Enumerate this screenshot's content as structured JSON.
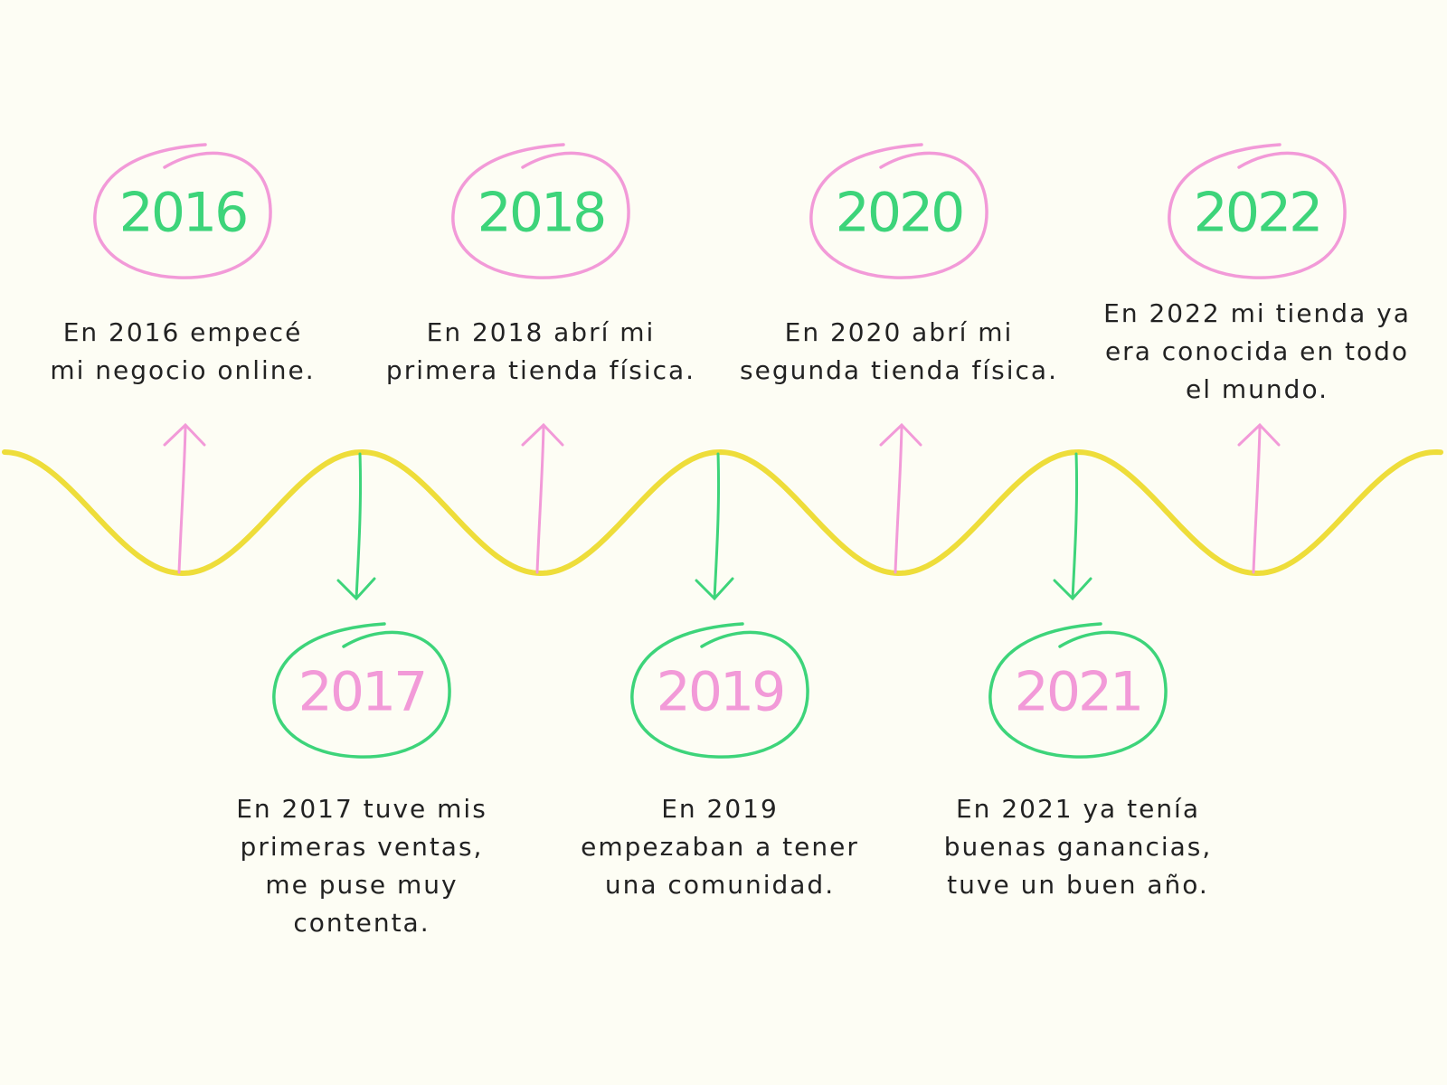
{
  "events": [
    {
      "year": "2016",
      "lines": [
        "En 2016 empecé",
        "mi negocio online."
      ]
    },
    {
      "year": "2017",
      "lines": [
        "En 2017 tuve mis",
        "primeras ventas,",
        "me puse muy",
        "contenta."
      ]
    },
    {
      "year": "2018",
      "lines": [
        "En 2018 abrí mi",
        "primera tienda física."
      ]
    },
    {
      "year": "2019",
      "lines": [
        "En 2019",
        "empezaban a tener",
        "una comunidad."
      ]
    },
    {
      "year": "2020",
      "lines": [
        "En 2020 abrí mi",
        "segunda tienda física."
      ]
    },
    {
      "year": "2021",
      "lines": [
        "En 2021 ya tenía",
        "buenas ganancias,",
        "tuve un buen año."
      ]
    },
    {
      "year": "2022",
      "lines": [
        "En 2022 mi tienda ya",
        "era conocida en todo",
        "el mundo."
      ]
    }
  ]
}
